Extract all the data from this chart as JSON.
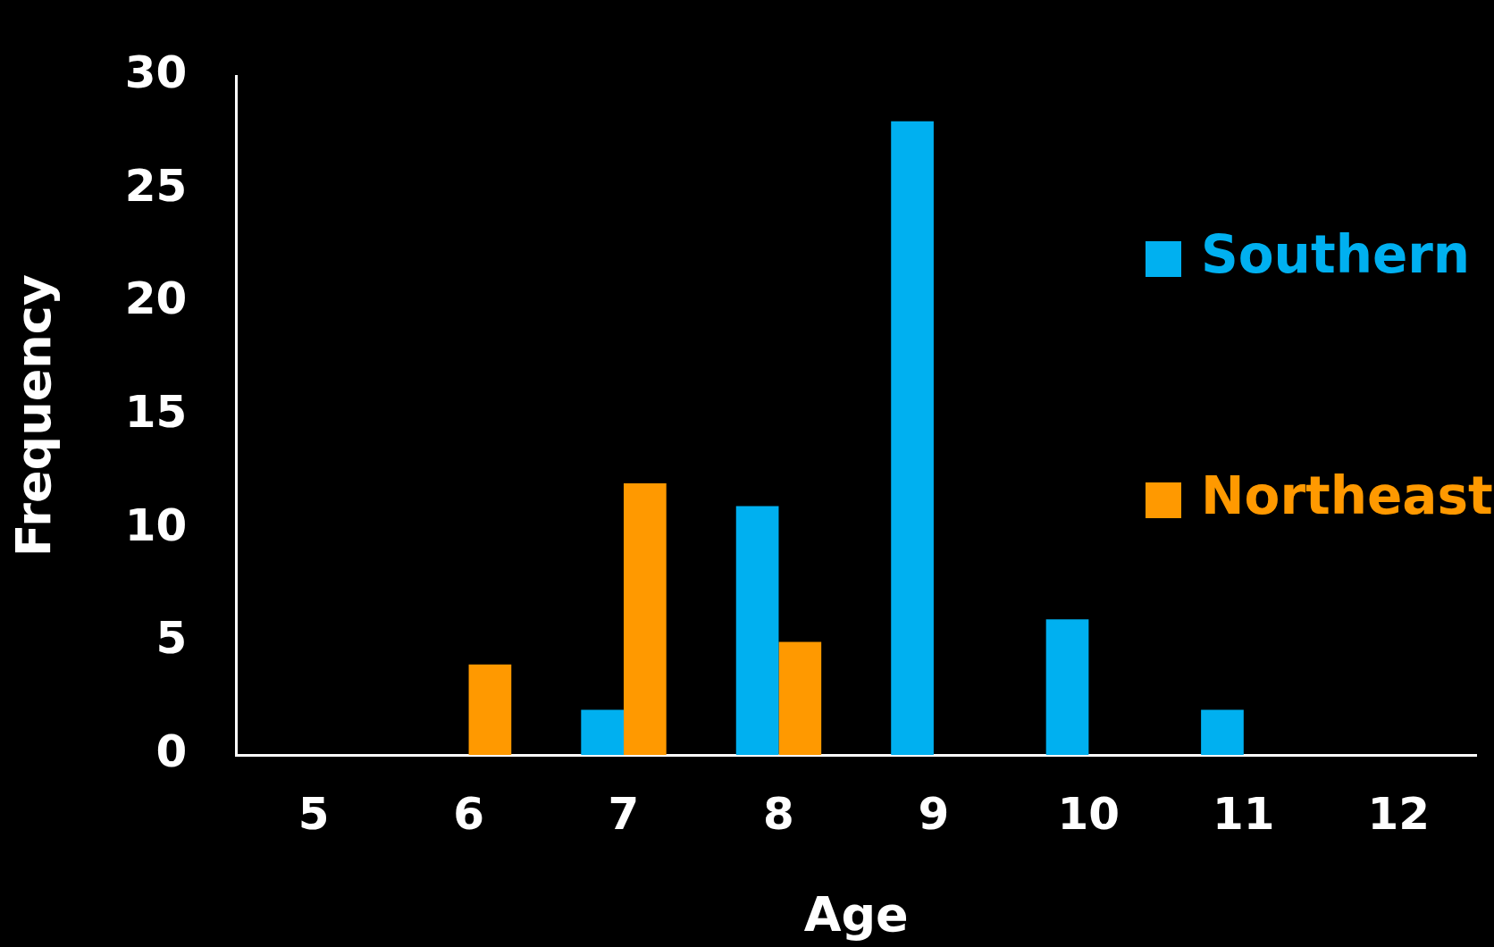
{
  "chart_data": {
    "type": "bar",
    "xlabel": "Age",
    "ylabel": "Frequency",
    "categories": [
      "5",
      "6",
      "7",
      "8",
      "9",
      "10",
      "11",
      "12"
    ],
    "series": [
      {
        "name": "Southern",
        "color": "#00b0f0",
        "values": [
          0,
          0,
          2,
          11,
          28,
          6,
          2,
          0
        ]
      },
      {
        "name": "Northeast",
        "color": "#ff9900",
        "values": [
          0,
          4,
          12,
          5,
          0,
          0,
          0,
          0
        ]
      }
    ],
    "ylim": [
      0,
      30
    ],
    "yticks": [
      0,
      5,
      10,
      15,
      20,
      25,
      30
    ],
    "grid": false,
    "legend": "right"
  }
}
